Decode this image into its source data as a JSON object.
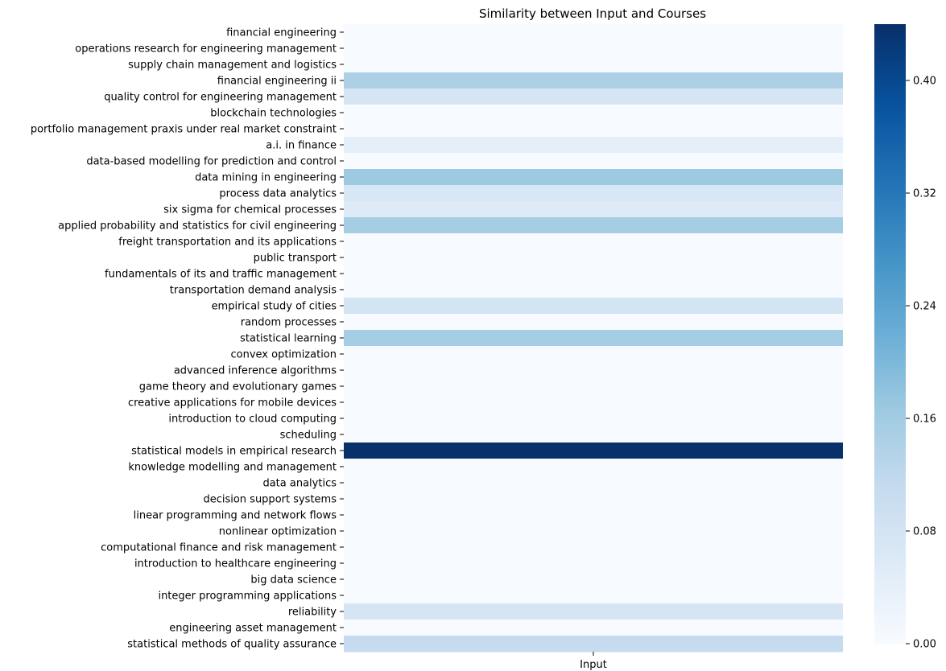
{
  "chart_data": {
    "type": "heatmap",
    "title": "Similarity between Input and Courses",
    "x_categories": [
      "Input"
    ],
    "y_categories": [
      "financial engineering",
      "operations research for engineering management",
      "supply chain management and logistics",
      "financial engineering ii",
      "quality control for engineering management",
      "blockchain technologies",
      "portfolio management praxis under real market constraint",
      "a.i. in finance",
      "data-based modelling for prediction and control",
      "data mining in engineering",
      "process data analytics",
      "six sigma for chemical processes",
      "applied probability and statistics for civil engineering",
      "freight transportation and its applications",
      "public transport",
      "fundamentals of its and traffic management",
      "transportation demand analysis",
      "empirical study of cities",
      "random processes",
      "statistical learning",
      "convex optimization",
      "advanced inference algorithms",
      "game theory and evolutionary games",
      "creative applications for mobile devices",
      "introduction to cloud computing",
      "scheduling",
      "statistical models in empirical research",
      "knowledge modelling and management",
      "data analytics",
      "decision support systems",
      "linear programming and network flows",
      "nonlinear optimization",
      "computational finance and risk management",
      "introduction to healthcare engineering",
      "big data science",
      "integer programming applications",
      "reliability",
      "engineering asset management",
      "statistical methods of quality assurance"
    ],
    "values": [
      0.0,
      0.0,
      0.0,
      0.145,
      0.075,
      0.0,
      0.0,
      0.04,
      0.0,
      0.165,
      0.07,
      0.055,
      0.155,
      0.0,
      0.0,
      0.0,
      0.0,
      0.08,
      0.0,
      0.155,
      0.0,
      0.0,
      0.0,
      0.0,
      0.0,
      0.0,
      0.44,
      0.0,
      0.0,
      0.0,
      0.0,
      0.0,
      0.0,
      0.0,
      0.0,
      0.0,
      0.075,
      0.0,
      0.11
    ],
    "colormap": "Blues",
    "colorbar": {
      "range": [
        0.0,
        0.44
      ],
      "ticks": [
        0.0,
        0.08,
        0.16,
        0.24,
        0.32,
        0.4
      ],
      "tick_labels": [
        "0.00",
        "0.08",
        "0.16",
        "0.24",
        "0.32",
        "0.40"
      ]
    },
    "grid": false
  }
}
